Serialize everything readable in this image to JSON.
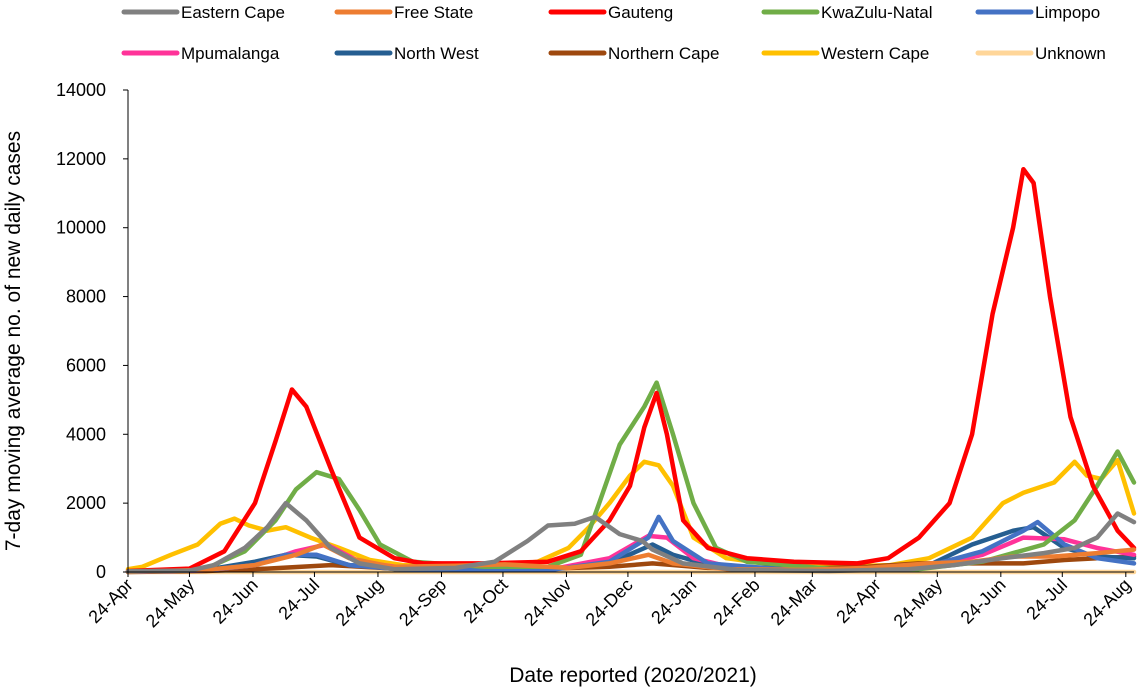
{
  "chart_data": {
    "type": "line",
    "xlabel": "Date reported (2020/2021)",
    "ylabel": "7-day moving average no. of new daily cases",
    "ylim": [
      0,
      14000
    ],
    "yticks": [
      0,
      2000,
      4000,
      6000,
      8000,
      10000,
      12000,
      14000
    ],
    "ytick_labels": [
      "0",
      "2000",
      "4000",
      "6000",
      "8000",
      "10000",
      "12000",
      "14000"
    ],
    "xlim": [
      "2020-04-24",
      "2021-08-28"
    ],
    "xticks": [
      "2020-04-24",
      "2020-05-24",
      "2020-06-24",
      "2020-07-24",
      "2020-08-24",
      "2020-09-24",
      "2020-10-24",
      "2020-11-24",
      "2020-12-24",
      "2021-01-24",
      "2021-02-24",
      "2021-03-24",
      "2021-04-24",
      "2021-05-24",
      "2021-06-24",
      "2021-07-24",
      "2021-08-24"
    ],
    "xtick_labels": [
      "24-Apr",
      "24-May",
      "24-Jun",
      "24-Jul",
      "24-Aug",
      "24-Sep",
      "24-Oct",
      "24-Nov",
      "24-Dec",
      "24-Jan",
      "24-Feb",
      "24-Mar",
      "24-Apr",
      "24-May",
      "24-Jun",
      "24-Jul",
      "24-Aug"
    ],
    "legend_position": "top",
    "grid": false,
    "series": [
      {
        "name": "Eastern Cape",
        "color": "#808080",
        "points": [
          [
            "2020-04-24",
            20
          ],
          [
            "2020-05-24",
            40
          ],
          [
            "2020-06-05",
            200
          ],
          [
            "2020-06-20",
            700
          ],
          [
            "2020-07-01",
            1300
          ],
          [
            "2020-07-10",
            2000
          ],
          [
            "2020-07-20",
            1500
          ],
          [
            "2020-08-01",
            700
          ],
          [
            "2020-08-15",
            250
          ],
          [
            "2020-09-01",
            80
          ],
          [
            "2020-10-01",
            120
          ],
          [
            "2020-10-20",
            300
          ],
          [
            "2020-11-05",
            900
          ],
          [
            "2020-11-15",
            1350
          ],
          [
            "2020-11-28",
            1400
          ],
          [
            "2020-12-08",
            1600
          ],
          [
            "2020-12-20",
            1100
          ],
          [
            "2020-12-31",
            900
          ],
          [
            "2021-01-05",
            650
          ],
          [
            "2021-01-20",
            250
          ],
          [
            "2021-02-15",
            60
          ],
          [
            "2021-04-01",
            30
          ],
          [
            "2021-05-10",
            80
          ],
          [
            "2021-06-01",
            200
          ],
          [
            "2021-06-25",
            400
          ],
          [
            "2021-07-15",
            550
          ],
          [
            "2021-07-30",
            700
          ],
          [
            "2021-08-10",
            1000
          ],
          [
            "2021-08-20",
            1700
          ],
          [
            "2021-08-28",
            1450
          ]
        ]
      },
      {
        "name": "Free State",
        "color": "#ED7D31",
        "points": [
          [
            "2020-04-24",
            10
          ],
          [
            "2020-06-01",
            60
          ],
          [
            "2020-06-25",
            200
          ],
          [
            "2020-07-15",
            500
          ],
          [
            "2020-07-28",
            800
          ],
          [
            "2020-08-10",
            400
          ],
          [
            "2020-08-31",
            150
          ],
          [
            "2020-10-01",
            180
          ],
          [
            "2020-10-25",
            220
          ],
          [
            "2020-11-25",
            120
          ],
          [
            "2020-12-15",
            250
          ],
          [
            "2021-01-03",
            500
          ],
          [
            "2021-01-15",
            250
          ],
          [
            "2021-02-10",
            80
          ],
          [
            "2021-03-20",
            60
          ],
          [
            "2021-04-20",
            120
          ],
          [
            "2021-05-20",
            250
          ],
          [
            "2021-06-10",
            300
          ],
          [
            "2021-06-30",
            450
          ],
          [
            "2021-07-20",
            450
          ],
          [
            "2021-08-10",
            550
          ],
          [
            "2021-08-28",
            650
          ]
        ]
      },
      {
        "name": "Gauteng",
        "color": "#FF0000",
        "points": [
          [
            "2020-04-24",
            30
          ],
          [
            "2020-05-24",
            100
          ],
          [
            "2020-06-10",
            600
          ],
          [
            "2020-06-25",
            2000
          ],
          [
            "2020-07-05",
            3800
          ],
          [
            "2020-07-13",
            5300
          ],
          [
            "2020-07-20",
            4800
          ],
          [
            "2020-08-01",
            3000
          ],
          [
            "2020-08-15",
            1000
          ],
          [
            "2020-09-01",
            400
          ],
          [
            "2020-09-15",
            250
          ],
          [
            "2020-10-15",
            250
          ],
          [
            "2020-11-15",
            300
          ],
          [
            "2020-12-01",
            600
          ],
          [
            "2020-12-15",
            1500
          ],
          [
            "2020-12-25",
            2500
          ],
          [
            "2021-01-01",
            4200
          ],
          [
            "2021-01-07",
            5200
          ],
          [
            "2021-01-12",
            4000
          ],
          [
            "2021-01-20",
            1500
          ],
          [
            "2021-02-01",
            700
          ],
          [
            "2021-02-20",
            400
          ],
          [
            "2021-03-15",
            300
          ],
          [
            "2021-04-15",
            250
          ],
          [
            "2021-04-30",
            400
          ],
          [
            "2021-05-15",
            1000
          ],
          [
            "2021-05-30",
            2000
          ],
          [
            "2021-06-10",
            4000
          ],
          [
            "2021-06-20",
            7500
          ],
          [
            "2021-06-30",
            10000
          ],
          [
            "2021-07-05",
            11700
          ],
          [
            "2021-07-10",
            11300
          ],
          [
            "2021-07-18",
            8000
          ],
          [
            "2021-07-28",
            4500
          ],
          [
            "2021-08-08",
            2500
          ],
          [
            "2021-08-20",
            1200
          ],
          [
            "2021-08-28",
            700
          ]
        ]
      },
      {
        "name": "KwaZulu-Natal",
        "color": "#70AD47",
        "points": [
          [
            "2020-04-24",
            10
          ],
          [
            "2020-06-01",
            100
          ],
          [
            "2020-06-20",
            600
          ],
          [
            "2020-07-05",
            1500
          ],
          [
            "2020-07-15",
            2400
          ],
          [
            "2020-07-25",
            2900
          ],
          [
            "2020-08-05",
            2700
          ],
          [
            "2020-08-15",
            1800
          ],
          [
            "2020-08-25",
            800
          ],
          [
            "2020-09-10",
            300
          ],
          [
            "2020-10-15",
            150
          ],
          [
            "2020-11-15",
            150
          ],
          [
            "2020-12-01",
            500
          ],
          [
            "2020-12-10",
            2000
          ],
          [
            "2020-12-20",
            3700
          ],
          [
            "2021-01-01",
            4800
          ],
          [
            "2021-01-07",
            5500
          ],
          [
            "2021-01-15",
            4000
          ],
          [
            "2021-01-25",
            2000
          ],
          [
            "2021-02-05",
            700
          ],
          [
            "2021-02-20",
            300
          ],
          [
            "2021-04-01",
            100
          ],
          [
            "2021-05-15",
            80
          ],
          [
            "2021-06-15",
            300
          ],
          [
            "2021-07-15",
            800
          ],
          [
            "2021-07-30",
            1500
          ],
          [
            "2021-08-10",
            2500
          ],
          [
            "2021-08-20",
            3500
          ],
          [
            "2021-08-28",
            2600
          ]
        ]
      },
      {
        "name": "Limpopo",
        "color": "#4472C4",
        "points": [
          [
            "2020-04-24",
            5
          ],
          [
            "2020-06-01",
            50
          ],
          [
            "2020-06-25",
            200
          ],
          [
            "2020-07-10",
            500
          ],
          [
            "2020-07-25",
            500
          ],
          [
            "2020-08-10",
            200
          ],
          [
            "2020-09-10",
            50
          ],
          [
            "2020-11-15",
            50
          ],
          [
            "2020-12-15",
            300
          ],
          [
            "2021-01-03",
            1000
          ],
          [
            "2021-01-08",
            1600
          ],
          [
            "2021-01-15",
            900
          ],
          [
            "2021-02-01",
            250
          ],
          [
            "2021-03-15",
            50
          ],
          [
            "2021-05-15",
            100
          ],
          [
            "2021-06-15",
            600
          ],
          [
            "2021-07-05",
            1200
          ],
          [
            "2021-07-12",
            1450
          ],
          [
            "2021-07-25",
            800
          ],
          [
            "2021-08-10",
            400
          ],
          [
            "2021-08-28",
            250
          ]
        ]
      },
      {
        "name": "Mpumalanga",
        "color": "#FF3399",
        "points": [
          [
            "2020-04-24",
            5
          ],
          [
            "2020-06-01",
            50
          ],
          [
            "2020-06-25",
            200
          ],
          [
            "2020-07-15",
            600
          ],
          [
            "2020-07-30",
            800
          ],
          [
            "2020-08-15",
            300
          ],
          [
            "2020-09-10",
            80
          ],
          [
            "2020-11-15",
            60
          ],
          [
            "2020-12-15",
            400
          ],
          [
            "2021-01-03",
            1050
          ],
          [
            "2021-01-12",
            1000
          ],
          [
            "2021-01-25",
            400
          ],
          [
            "2021-02-15",
            100
          ],
          [
            "2021-04-15",
            50
          ],
          [
            "2021-05-20",
            150
          ],
          [
            "2021-06-15",
            500
          ],
          [
            "2021-07-05",
            1000
          ],
          [
            "2021-07-25",
            950
          ],
          [
            "2021-08-10",
            700
          ],
          [
            "2021-08-28",
            500
          ]
        ]
      },
      {
        "name": "North West",
        "color": "#255E91",
        "points": [
          [
            "2020-04-24",
            5
          ],
          [
            "2020-06-01",
            60
          ],
          [
            "2020-06-25",
            300
          ],
          [
            "2020-07-10",
            500
          ],
          [
            "2020-07-25",
            450
          ],
          [
            "2020-08-10",
            200
          ],
          [
            "2020-09-10",
            80
          ],
          [
            "2020-11-15",
            80
          ],
          [
            "2020-12-15",
            250
          ],
          [
            "2021-01-05",
            800
          ],
          [
            "2021-01-15",
            500
          ],
          [
            "2021-02-05",
            150
          ],
          [
            "2021-04-15",
            80
          ],
          [
            "2021-05-20",
            200
          ],
          [
            "2021-06-10",
            800
          ],
          [
            "2021-06-30",
            1200
          ],
          [
            "2021-07-10",
            1300
          ],
          [
            "2021-07-25",
            700
          ],
          [
            "2021-08-10",
            450
          ],
          [
            "2021-08-28",
            400
          ]
        ]
      },
      {
        "name": "Northern Cape",
        "color": "#9E480E",
        "points": [
          [
            "2020-04-24",
            0
          ],
          [
            "2020-06-01",
            30
          ],
          [
            "2020-07-01",
            100
          ],
          [
            "2020-08-01",
            200
          ],
          [
            "2020-09-01",
            100
          ],
          [
            "2020-10-15",
            80
          ],
          [
            "2020-11-15",
            100
          ],
          [
            "2020-12-15",
            150
          ],
          [
            "2021-01-05",
            250
          ],
          [
            "2021-02-01",
            120
          ],
          [
            "2021-03-15",
            100
          ],
          [
            "2021-04-20",
            150
          ],
          [
            "2021-05-15",
            250
          ],
          [
            "2021-06-15",
            250
          ],
          [
            "2021-07-05",
            250
          ],
          [
            "2021-07-25",
            350
          ],
          [
            "2021-08-10",
            400
          ],
          [
            "2021-08-28",
            450
          ]
        ]
      },
      {
        "name": "Western Cape",
        "color": "#FFC000",
        "points": [
          [
            "2020-04-24",
            80
          ],
          [
            "2020-05-01",
            150
          ],
          [
            "2020-05-15",
            500
          ],
          [
            "2020-05-28",
            800
          ],
          [
            "2020-06-08",
            1400
          ],
          [
            "2020-06-15",
            1550
          ],
          [
            "2020-06-22",
            1350
          ],
          [
            "2020-07-01",
            1200
          ],
          [
            "2020-07-10",
            1300
          ],
          [
            "2020-07-22",
            1000
          ],
          [
            "2020-08-05",
            700
          ],
          [
            "2020-08-20",
            350
          ],
          [
            "2020-09-05",
            200
          ],
          [
            "2020-10-01",
            150
          ],
          [
            "2020-10-25",
            200
          ],
          [
            "2020-11-10",
            300
          ],
          [
            "2020-11-25",
            700
          ],
          [
            "2020-12-05",
            1300
          ],
          [
            "2020-12-15",
            2000
          ],
          [
            "2020-12-25",
            2800
          ],
          [
            "2021-01-01",
            3200
          ],
          [
            "2021-01-08",
            3100
          ],
          [
            "2021-01-15",
            2500
          ],
          [
            "2021-01-25",
            1000
          ],
          [
            "2021-02-10",
            400
          ],
          [
            "2021-03-01",
            250
          ],
          [
            "2021-04-01",
            150
          ],
          [
            "2021-05-01",
            200
          ],
          [
            "2021-05-20",
            400
          ],
          [
            "2021-06-10",
            1000
          ],
          [
            "2021-06-25",
            2000
          ],
          [
            "2021-07-05",
            2300
          ],
          [
            "2021-07-20",
            2600
          ],
          [
            "2021-07-30",
            3200
          ],
          [
            "2021-08-05",
            2800
          ],
          [
            "2021-08-12",
            2700
          ],
          [
            "2021-08-20",
            3250
          ],
          [
            "2021-08-28",
            1700
          ]
        ]
      },
      {
        "name": "Unknown",
        "color": "#FFD699",
        "points": [
          [
            "2020-04-24",
            0
          ],
          [
            "2021-08-28",
            0
          ]
        ]
      }
    ]
  }
}
